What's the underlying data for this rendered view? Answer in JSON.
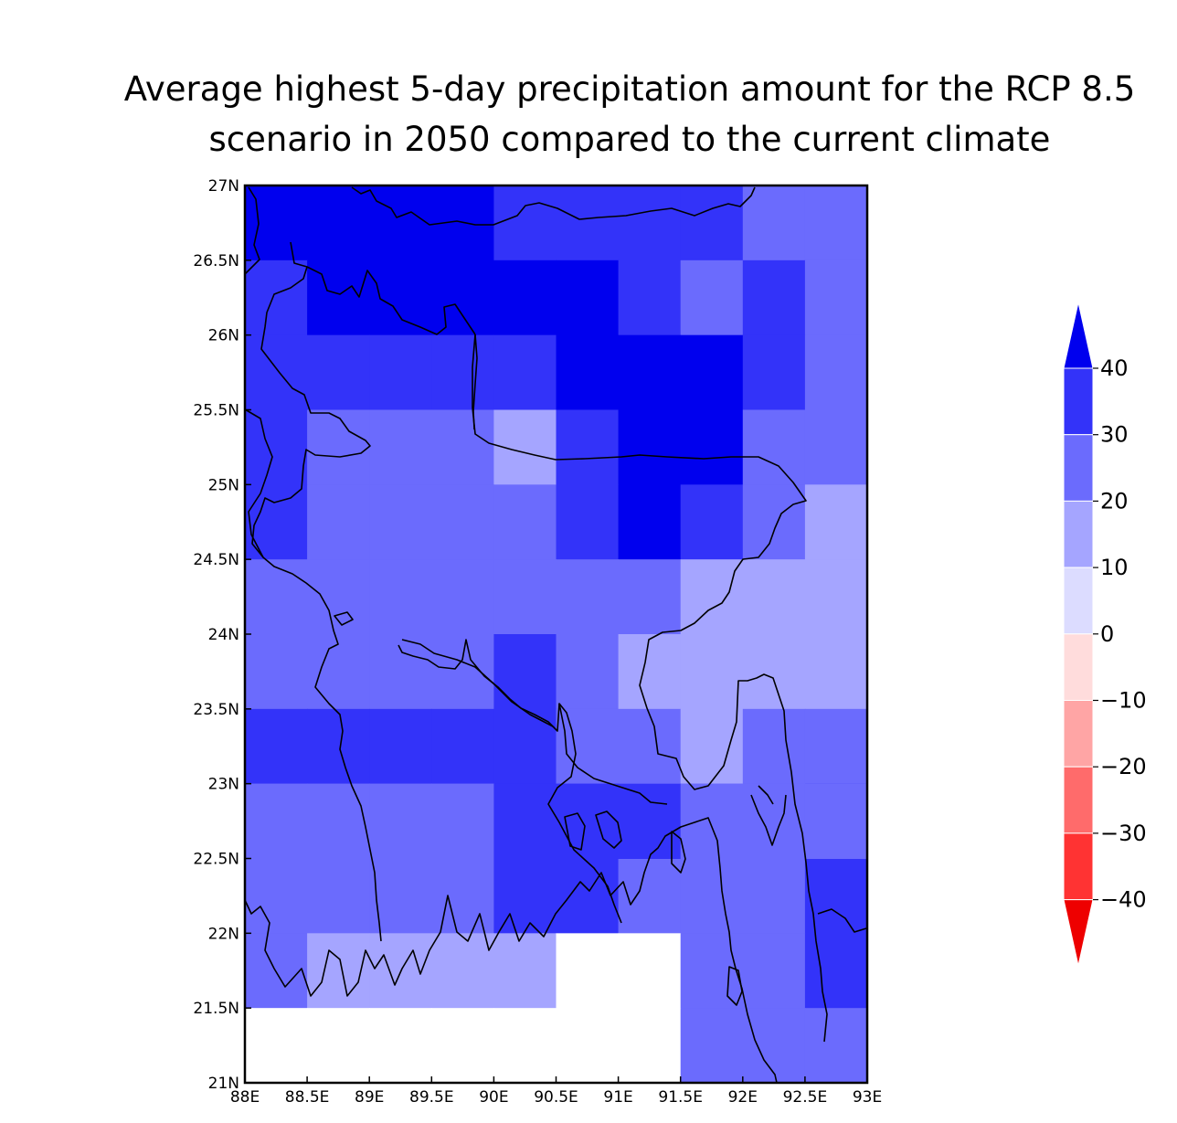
{
  "title": {
    "line1": "Average highest 5-day precipitation amount for the RCP 8.5",
    "line2": "scenario in 2050 compared to the current climate"
  },
  "map": {
    "lon_range": [
      88,
      93
    ],
    "lat_range": [
      21,
      27
    ],
    "x_ticks": [
      "88E",
      "88.5E",
      "89E",
      "89.5E",
      "90E",
      "90.5E",
      "91E",
      "91.5E",
      "92E",
      "92.5E",
      "93E"
    ],
    "y_ticks": [
      "27N",
      "26.5N",
      "26N",
      "25.5N",
      "25N",
      "24.5N",
      "24N",
      "23.5N",
      "23N",
      "22.5N",
      "22N",
      "21.5N",
      "21N"
    ],
    "grid_values_lat_rows_north_to_south": [
      [
        40,
        40,
        40,
        40,
        30,
        30,
        30,
        30,
        20,
        20
      ],
      [
        30,
        40,
        40,
        40,
        40,
        40,
        30,
        20,
        30,
        20
      ],
      [
        30,
        30,
        30,
        30,
        30,
        40,
        40,
        40,
        30,
        20
      ],
      [
        30,
        20,
        20,
        20,
        10,
        30,
        40,
        40,
        20,
        20
      ],
      [
        30,
        20,
        20,
        20,
        20,
        30,
        40,
        30,
        20,
        10
      ],
      [
        20,
        20,
        20,
        20,
        20,
        20,
        20,
        10,
        10,
        10
      ],
      [
        20,
        20,
        20,
        20,
        30,
        20,
        10,
        10,
        10,
        10
      ],
      [
        30,
        30,
        30,
        30,
        30,
        20,
        20,
        10,
        20,
        20
      ],
      [
        20,
        20,
        20,
        20,
        30,
        30,
        20,
        20,
        20,
        30
      ],
      [
        20,
        10,
        10,
        10,
        10,
        null,
        null,
        20,
        20,
        30
      ],
      [
        null,
        null,
        null,
        null,
        null,
        null,
        null,
        20,
        20,
        20
      ]
    ]
  },
  "colorbar": {
    "labels": [
      "40",
      "30",
      "20",
      "10",
      "0",
      "−10",
      "−20",
      "−30",
      "−40"
    ],
    "colors": {
      "gt40": "#0000ee",
      "30_40": "#3333f9",
      "20_30": "#6b6bfd",
      "10_20": "#a5a5ff",
      "0_10": "#dcdcff",
      "m10_0": "#ffdcdc",
      "m20_m10": "#ffa5a5",
      "m30_m20": "#ff6b6b",
      "m40_m30": "#ff3333",
      "lt_m40": "#ee0000",
      "missing": "#ffffff"
    }
  }
}
